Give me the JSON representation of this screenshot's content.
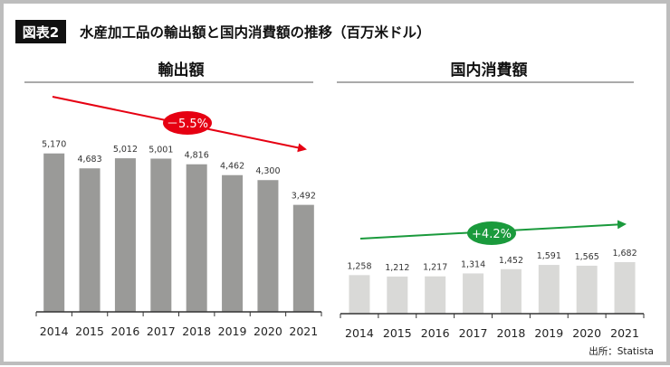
{
  "header": {
    "badge": "図表2",
    "title": "水産加工品の輸出額と国内消費額の推移（百万米ドル）"
  },
  "source": "出所：Statista",
  "colors": {
    "export_bar": "#9a9a98",
    "domestic_bar": "#d9d9d7",
    "decline": "#e60012",
    "growth": "#1a9a3c"
  },
  "chart_data": [
    {
      "type": "bar",
      "title": "輸出額",
      "categories": [
        "2014",
        "2015",
        "2016",
        "2017",
        "2018",
        "2019",
        "2020",
        "2021"
      ],
      "values": [
        5170,
        4683,
        5012,
        5001,
        4816,
        4462,
        4300,
        3492
      ],
      "value_labels": [
        "5,170",
        "4,683",
        "5,012",
        "5,001",
        "4,816",
        "4,462",
        "4,300",
        "3,492"
      ],
      "trend": {
        "label": "－5.5%",
        "direction": "down"
      },
      "grid": false
    },
    {
      "type": "bar",
      "title": "国内消費額",
      "categories": [
        "2014",
        "2015",
        "2016",
        "2017",
        "2018",
        "2019",
        "2020",
        "2021"
      ],
      "values": [
        1258,
        1212,
        1217,
        1314,
        1452,
        1591,
        1565,
        1682
      ],
      "value_labels": [
        "1,258",
        "1,212",
        "1,217",
        "1,314",
        "1,452",
        "1,591",
        "1,565",
        "1,682"
      ],
      "trend": {
        "label": "+4.2%",
        "direction": "up"
      },
      "grid": false
    }
  ]
}
